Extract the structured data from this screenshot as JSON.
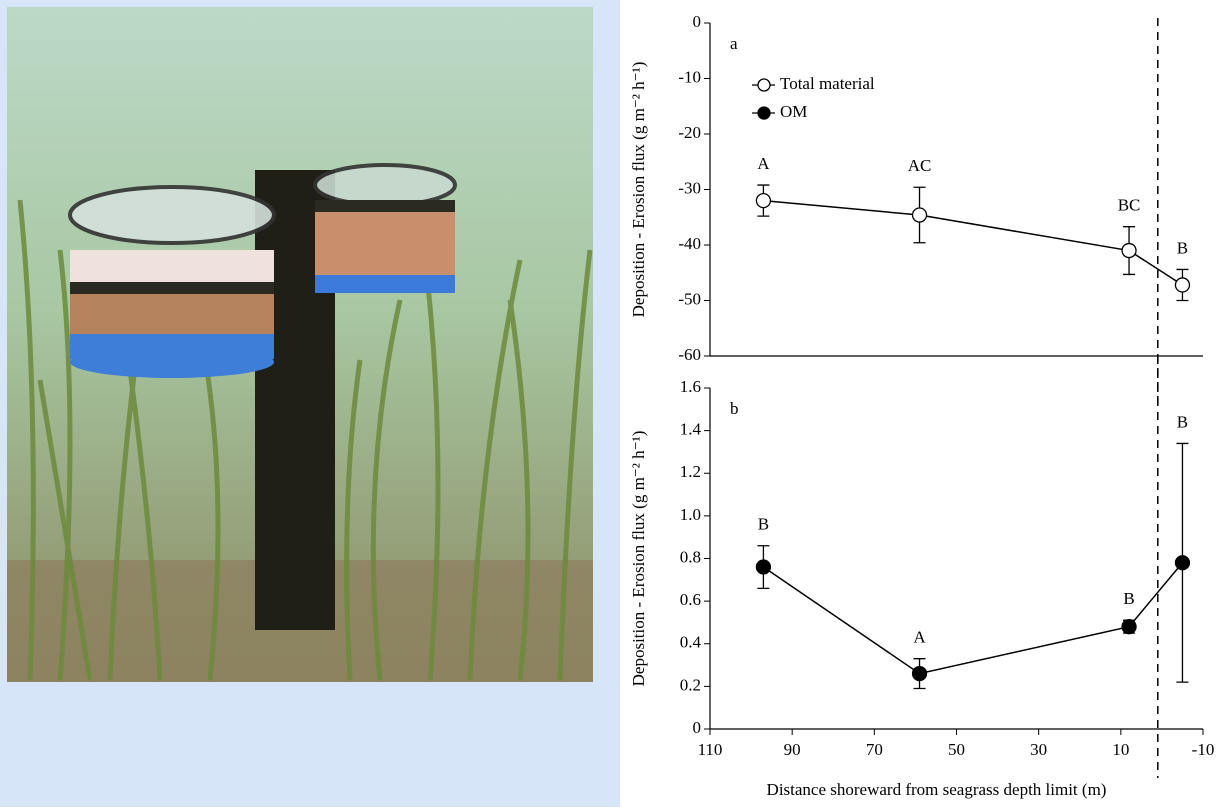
{
  "chart_data": [
    {
      "type": "line",
      "panel_label": "a",
      "ylabel": "Deposition - Erosion flux (g m⁻² h⁻¹)",
      "x": [
        97,
        59,
        8,
        -5
      ],
      "series": [
        {
          "name": "Total material",
          "color": "#000000",
          "marker": "open",
          "values": [
            -32,
            -34.6,
            -41,
            -47.2
          ],
          "errors": [
            2.8,
            5,
            4.3,
            2.8
          ],
          "point_labels": [
            "A",
            "AC",
            "BC",
            "B"
          ]
        }
      ],
      "xlim": [
        110,
        -10
      ],
      "ylim": [
        -60,
        0
      ],
      "yticks": [
        0,
        -10,
        -20,
        -30,
        -40,
        -50,
        -60
      ],
      "vline": 1,
      "legend": "upper left"
    },
    {
      "type": "line",
      "panel_label": "b",
      "ylabel": "Deposition - Erosion flux (g m⁻² h⁻¹)",
      "xlabel": "Distance shoreward from seagrass depth limit (m)",
      "x": [
        97,
        59,
        8,
        -5
      ],
      "series": [
        {
          "name": "OM",
          "color": "#000000",
          "marker": "filled",
          "values": [
            0.76,
            0.26,
            0.48,
            0.78
          ],
          "errors": [
            0.1,
            0.07,
            0.03,
            0.56
          ],
          "point_labels": [
            "B",
            "A",
            "B",
            "B"
          ]
        }
      ],
      "xlim": [
        110,
        -10
      ],
      "ylim": [
        0,
        1.6
      ],
      "xticks": [
        110,
        90,
        70,
        50,
        30,
        10,
        -10
      ],
      "yticks": [
        0,
        0.2,
        0.4,
        0.6,
        0.8,
        {
          "value": 1,
          "label": "1.0"
        },
        1.2,
        1.4,
        1.6
      ],
      "vline": 1
    }
  ]
}
